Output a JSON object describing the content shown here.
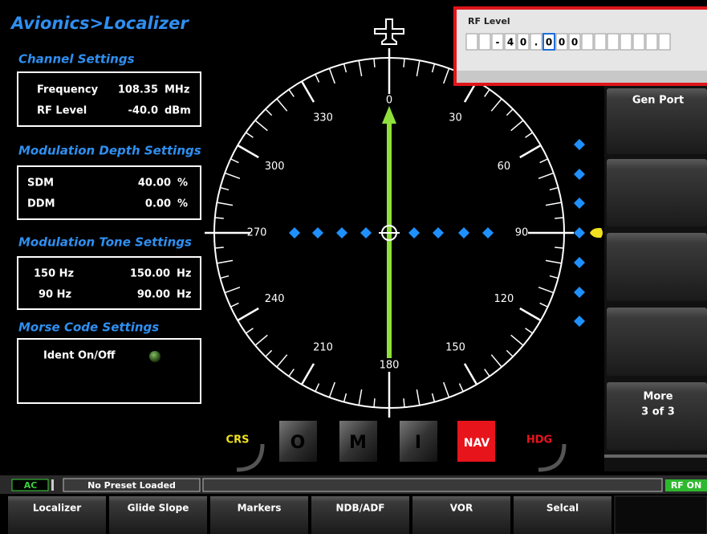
{
  "header": {
    "title": "Avionics>Localizer"
  },
  "sections": [
    {
      "title": "Channel Settings",
      "rows": [
        {
          "label": "Frequency",
          "value": "108.35",
          "unit": "MHz"
        },
        {
          "label": "RF Level",
          "value": "-40.0",
          "unit": "dBm"
        }
      ]
    },
    {
      "title": "Modulation Depth Settings",
      "rows": [
        {
          "label": "SDM",
          "value": "40.00",
          "unit": "%"
        },
        {
          "label": "DDM",
          "value": "0.00",
          "unit": "%"
        }
      ]
    },
    {
      "title": "Modulation Tone Settings",
      "rows": [
        {
          "label": "150 Hz",
          "value": "150.00",
          "unit": "Hz"
        },
        {
          "label": "90 Hz",
          "value": "90.00",
          "unit": "Hz"
        }
      ]
    }
  ],
  "morse": {
    "title": "Morse Code Settings",
    "label": "Ident On/Off"
  },
  "compass": {
    "labels": [
      0,
      30,
      60,
      90,
      120,
      150,
      180,
      210,
      240,
      270,
      300,
      330
    ]
  },
  "popup": {
    "title": "RF Level",
    "cells": [
      "-",
      "4",
      "0",
      ".",
      "0",
      "0",
      "0"
    ]
  },
  "side_buttons": [
    {
      "label": "Gen Port"
    },
    {
      "label": "More",
      "sub": "3 of 3"
    }
  ],
  "indicators": [
    "CRS",
    "O",
    "M",
    "I",
    "NAV",
    "HDG"
  ],
  "status": {
    "power": "AC",
    "preset": "No Preset Loaded",
    "rf": "RF ON"
  },
  "tabs": [
    "Localizer",
    "Glide Slope",
    "Markers",
    "NDB/ADF",
    "VOR",
    "Selcal"
  ]
}
